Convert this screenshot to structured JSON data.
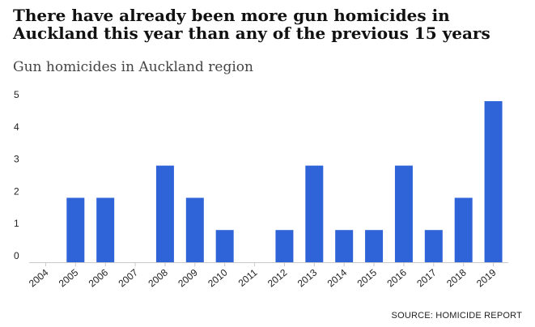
{
  "chart_data": {
    "type": "bar",
    "title": "There have already been more gun homicides in Auckland this year than any of the previous 15 years",
    "subtitle": "Gun homicides in Auckland region",
    "categories": [
      "2004",
      "2005",
      "2006",
      "2007",
      "2008",
      "2009",
      "2010",
      "2011",
      "2012",
      "2013",
      "2014",
      "2015",
      "2016",
      "2017",
      "2018",
      "2019"
    ],
    "values": [
      0,
      2,
      2,
      0,
      3,
      2,
      1,
      0,
      1,
      3,
      1,
      1,
      3,
      1,
      2,
      5
    ],
    "ylim": [
      0,
      5
    ],
    "yticks": [
      0,
      1,
      2,
      3,
      4,
      5
    ],
    "xlabel": "",
    "ylabel": "",
    "bar_color": "#2f64d8",
    "grid": false,
    "source": "SOURCE: HOMICIDE REPORT"
  }
}
